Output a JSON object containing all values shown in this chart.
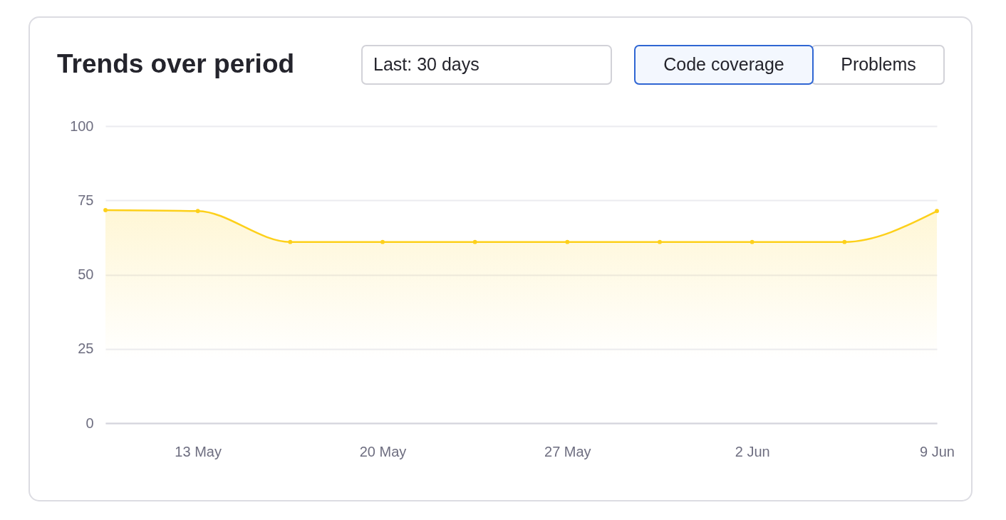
{
  "chart_data": {
    "type": "area",
    "title": "Trends over period",
    "annotations": [
      "Last: 30 days",
      "Code coverage",
      "Problems"
    ],
    "categories": [
      null,
      "13 May",
      null,
      "20 May",
      null,
      "27 May",
      null,
      "2 Jun",
      null,
      "9 Jun"
    ],
    "series": [
      {
        "color": "#fdd01a",
        "values": [
          71.7,
          71.4,
          61,
          61,
          61,
          61,
          61,
          61,
          61,
          71.4
        ]
      }
    ],
    "ylim": [
      0,
      100
    ],
    "yticks": [
      0,
      25,
      50,
      75,
      100
    ],
    "grid": "y",
    "marker": "circle",
    "line_style": "solid"
  }
}
